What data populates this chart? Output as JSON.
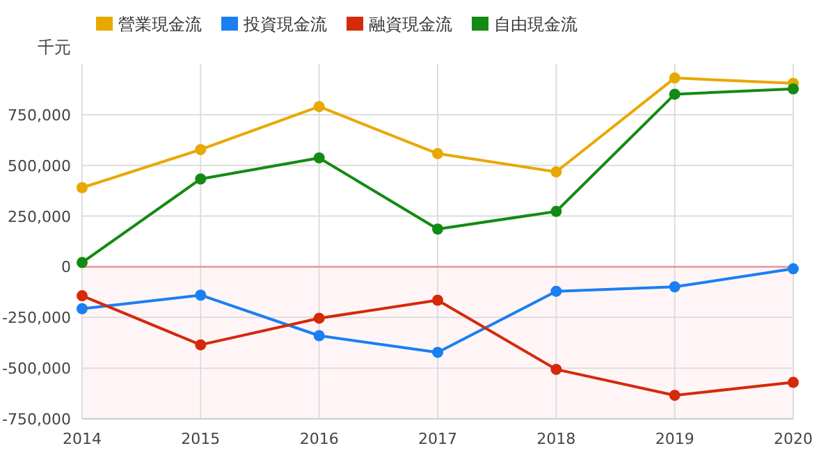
{
  "chart_data": {
    "type": "line",
    "ylabel": "千元",
    "x": [
      2014,
      2015,
      2016,
      2017,
      2018,
      2019,
      2020
    ],
    "xlim": [
      2014,
      2020
    ],
    "xticks": [
      2014,
      2015,
      2016,
      2017,
      2018,
      2019,
      2020
    ],
    "ylim": [
      -750000,
      1000000
    ],
    "yticks": [
      {
        "value": -750000,
        "label": "-750,000"
      },
      {
        "value": -500000,
        "label": "-500,000"
      },
      {
        "value": -250000,
        "label": "-250,000"
      },
      0,
      {
        "value": 250000,
        "label": "250,000"
      },
      {
        "value": 500000,
        "label": "500,000"
      },
      {
        "value": 750000,
        "label": "750,000"
      }
    ],
    "grid": true,
    "legend": "top",
    "marker": "circle",
    "line_style": "solid",
    "bands": [
      {
        "axis": "y",
        "from": -750000,
        "to": 0,
        "color": "#fff5f7"
      }
    ],
    "ref_lines": [
      {
        "axis": "y",
        "value": 0,
        "color": "#e8959b"
      }
    ],
    "series": [
      {
        "name": "營業現金流",
        "color": "#e8a800",
        "values": [
          390000,
          578000,
          790000,
          558000,
          468000,
          931000,
          905000
        ]
      },
      {
        "name": "投資現金流",
        "color": "#1a7ff0",
        "values": [
          -207000,
          -140000,
          -340000,
          -422000,
          -121000,
          -99000,
          -10000
        ]
      },
      {
        "name": "融資現金流",
        "color": "#d42a0a",
        "values": [
          -143000,
          -385000,
          -254000,
          -165000,
          -506000,
          -634000,
          -570000
        ]
      },
      {
        "name": "自由現金流",
        "color": "#138a13",
        "values": [
          21000,
          433000,
          537000,
          186000,
          273000,
          851000,
          877000
        ]
      }
    ]
  }
}
